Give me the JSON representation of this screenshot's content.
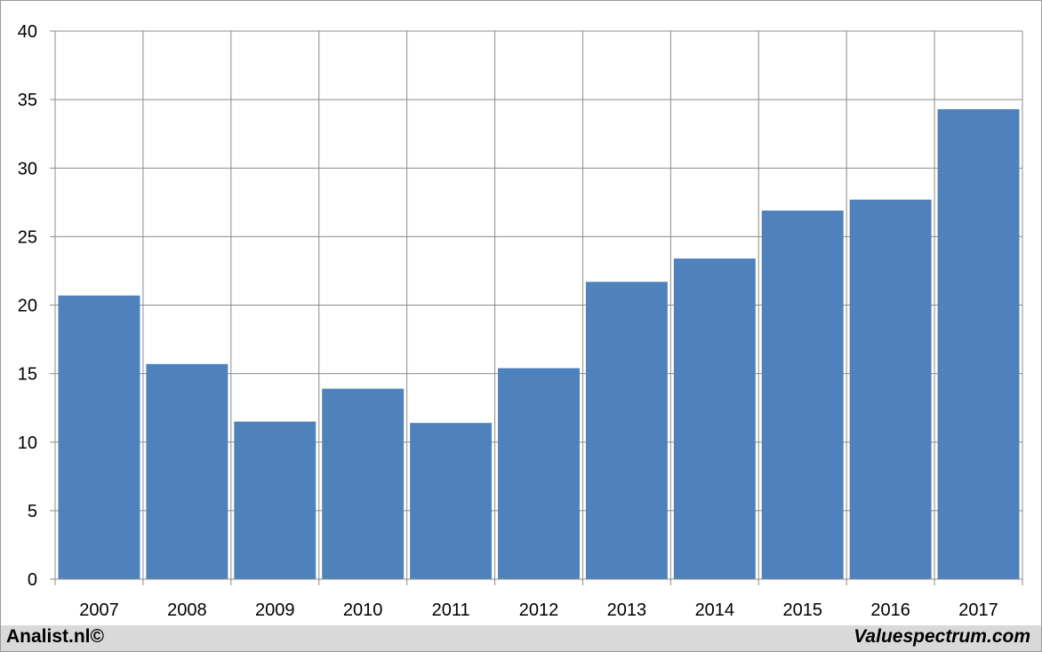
{
  "chart_data": {
    "type": "bar",
    "categories": [
      "2007",
      "2008",
      "2009",
      "2010",
      "2011",
      "2012",
      "2013",
      "2014",
      "2015",
      "2016",
      "2017"
    ],
    "values": [
      20.7,
      15.7,
      11.5,
      13.9,
      11.4,
      15.4,
      21.7,
      23.4,
      26.9,
      27.7,
      34.3
    ],
    "title": "",
    "xlabel": "",
    "ylabel": "",
    "ylim": [
      0,
      40
    ],
    "yticks": [
      "0",
      "5",
      "10",
      "15",
      "20",
      "25",
      "30",
      "35",
      "40"
    ],
    "grid": true,
    "bar_color": "#4f81bd"
  },
  "footer": {
    "left": "Analist.nl©",
    "right": "Valuespectrum.com"
  }
}
